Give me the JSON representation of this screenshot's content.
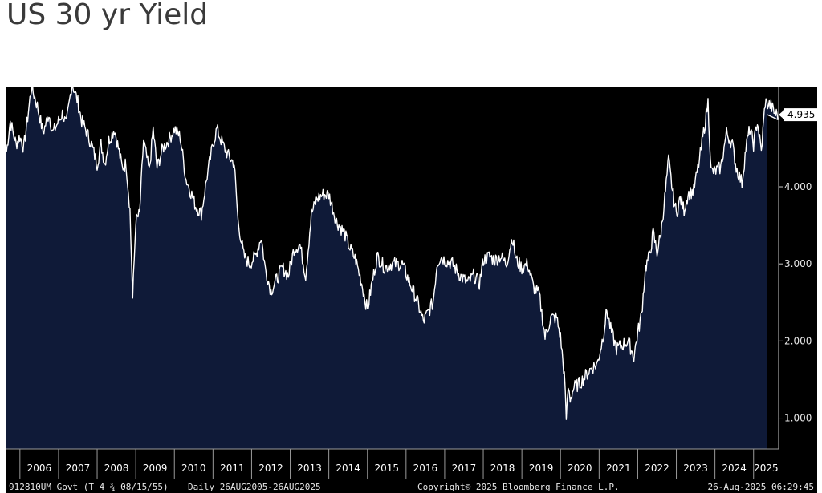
{
  "title": "US 30 yr Yield",
  "footer": {
    "security": "912810UM Govt (T 4 ¾ 08/15/55)",
    "range": "Daily 26AUG2005-26AUG2025",
    "copyright": "Copyright© 2025 Bloomberg Finance L.P.",
    "timestamp": "26-Aug-2025 06:29:45"
  },
  "last_value_label": "4.935",
  "colors": {
    "background": "#000000",
    "area_fill": "#0f1a38",
    "line": "#ffffff",
    "last_value_box": "#ffffff"
  },
  "chart_data": {
    "type": "area",
    "title": "US 30 yr Yield",
    "xlabel": "",
    "ylabel": "",
    "ylim": [
      0.6,
      5.3
    ],
    "yticks": [
      "1.000",
      "2.000",
      "3.000",
      "4.000"
    ],
    "ytick_values": [
      1,
      2,
      3,
      4
    ],
    "xtick_labels": [
      "2006",
      "2007",
      "2008",
      "2009",
      "2010",
      "2011",
      "2012",
      "2013",
      "2014",
      "2015",
      "2016",
      "2017",
      "2018",
      "2019",
      "2020",
      "2021",
      "2022",
      "2023",
      "2024",
      "2025"
    ],
    "xlim": [
      2005.65,
      2025.65
    ],
    "grid": false,
    "last_value": 4.935,
    "x": [
      2005.65,
      2005.75,
      2005.9,
      2006.0,
      2006.1,
      2006.3,
      2006.45,
      2006.6,
      2006.75,
      2006.85,
      2007.0,
      2007.1,
      2007.2,
      2007.35,
      2007.5,
      2007.6,
      2007.7,
      2007.85,
      2008.0,
      2008.1,
      2008.2,
      2008.3,
      2008.45,
      2008.55,
      2008.65,
      2008.75,
      2008.85,
      2008.92,
      2009.0,
      2009.1,
      2009.2,
      2009.35,
      2009.45,
      2009.55,
      2009.7,
      2009.85,
      2010.0,
      2010.15,
      2010.3,
      2010.45,
      2010.55,
      2010.7,
      2010.85,
      2011.0,
      2011.1,
      2011.25,
      2011.4,
      2011.55,
      2011.65,
      2011.8,
      2011.95,
      2012.1,
      2012.25,
      2012.35,
      2012.5,
      2012.65,
      2012.8,
      2012.95,
      2013.1,
      2013.25,
      2013.4,
      2013.55,
      2013.7,
      2013.85,
      2014.0,
      2014.2,
      2014.4,
      2014.55,
      2014.7,
      2014.85,
      2015.0,
      2015.1,
      2015.25,
      2015.45,
      2015.6,
      2015.75,
      2015.9,
      2016.1,
      2016.3,
      2016.45,
      2016.55,
      2016.7,
      2016.8,
      2016.9,
      2017.0,
      2017.2,
      2017.4,
      2017.6,
      2017.75,
      2017.9,
      2018.0,
      2018.15,
      2018.3,
      2018.45,
      2018.6,
      2018.75,
      2018.85,
      2019.0,
      2019.15,
      2019.3,
      2019.45,
      2019.6,
      2019.75,
      2019.9,
      2020.0,
      2020.1,
      2020.15,
      2020.2,
      2020.25,
      2020.35,
      2020.5,
      2020.65,
      2020.8,
      2020.95,
      2021.1,
      2021.2,
      2021.3,
      2021.45,
      2021.6,
      2021.75,
      2021.9,
      2022.0,
      2022.1,
      2022.2,
      2022.3,
      2022.4,
      2022.5,
      2022.6,
      2022.7,
      2022.8,
      2022.9,
      2023.0,
      2023.1,
      2023.2,
      2023.3,
      2023.45,
      2023.6,
      2023.75,
      2023.82,
      2023.9,
      2024.0,
      2024.15,
      2024.3,
      2024.45,
      2024.55,
      2024.7,
      2024.8,
      2024.9,
      2025.0,
      2025.1,
      2025.2,
      2025.3,
      2025.45,
      2025.55,
      2025.65
    ],
    "values": [
      4.45,
      4.85,
      4.55,
      4.65,
      4.5,
      5.3,
      5.05,
      4.7,
      4.95,
      4.7,
      4.85,
      4.95,
      4.8,
      5.35,
      5.1,
      4.85,
      4.75,
      4.55,
      4.3,
      4.55,
      4.3,
      4.6,
      4.75,
      4.5,
      4.25,
      4.3,
      3.7,
      2.55,
      3.55,
      3.65,
      4.6,
      4.2,
      4.75,
      4.25,
      4.5,
      4.6,
      4.75,
      4.65,
      4.1,
      3.9,
      3.75,
      3.65,
      4.15,
      4.55,
      4.75,
      4.55,
      4.4,
      4.3,
      3.55,
      3.1,
      3.0,
      3.1,
      3.35,
      2.95,
      2.65,
      2.8,
      2.95,
      2.85,
      3.2,
      3.25,
      2.85,
      3.65,
      3.85,
      3.9,
      3.9,
      3.55,
      3.4,
      3.2,
      3.05,
      2.75,
      2.4,
      2.7,
      3.1,
      2.95,
      3.0,
      3.0,
      3.0,
      2.75,
      2.5,
      2.25,
      2.35,
      2.5,
      3.0,
      3.1,
      3.05,
      3.0,
      2.85,
      2.75,
      2.85,
      2.75,
      3.05,
      3.1,
      3.05,
      3.1,
      3.0,
      3.35,
      3.05,
      2.95,
      3.0,
      2.7,
      2.6,
      2.05,
      2.3,
      2.3,
      2.05,
      1.55,
      1.0,
      1.4,
      1.25,
      1.4,
      1.45,
      1.55,
      1.65,
      1.7,
      2.05,
      2.4,
      2.15,
      1.9,
      1.95,
      2.0,
      1.8,
      2.1,
      2.35,
      2.95,
      3.1,
      3.4,
      3.15,
      3.4,
      3.85,
      4.35,
      3.95,
      3.65,
      3.85,
      3.7,
      3.9,
      3.95,
      4.35,
      4.85,
      5.1,
      4.2,
      4.2,
      4.25,
      4.7,
      4.55,
      4.25,
      4.05,
      4.5,
      4.75,
      4.55,
      4.85,
      4.45,
      5.1,
      5.05,
      4.95,
      4.935
    ]
  }
}
